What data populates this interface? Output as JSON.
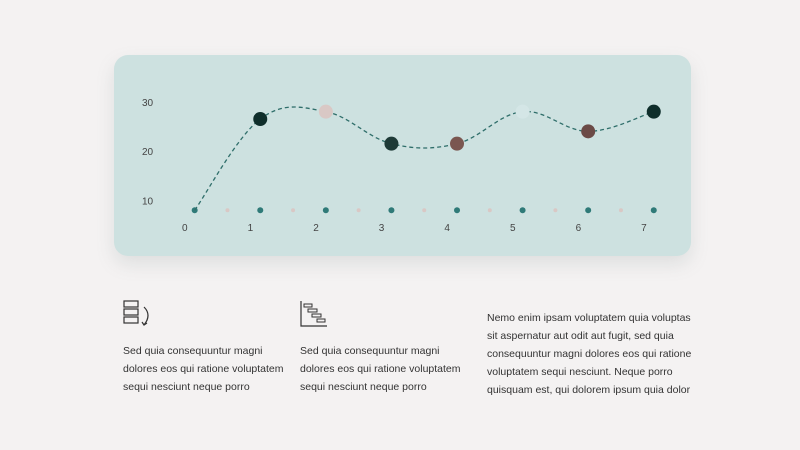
{
  "chart_data": {
    "type": "line",
    "x": [
      0.15,
      1.15,
      2.15,
      3.15,
      4.15,
      5.15,
      6.15,
      7.15
    ],
    "values": [
      8,
      26.5,
      28,
      21.5,
      21.5,
      28,
      24,
      28
    ],
    "yticks": [
      10,
      20,
      30
    ],
    "xticks": [
      0,
      1,
      2,
      3,
      4,
      5,
      6,
      7
    ],
    "xlim": [
      -0.15,
      7.55
    ],
    "ylim": [
      5,
      33
    ],
    "baseline_y": 8,
    "marker_colors": [
      "#2f7a78",
      "#0f2e2b",
      "#d9c8c5",
      "#1e3a37",
      "#7a5650",
      "#d4e6e6",
      "#6b4a46",
      "#0f2e2b"
    ],
    "baseline_dot_colors": [
      "#2f7a78",
      "#2f7a78",
      "#2f7a78",
      "#2f7a78",
      "#2f7a78",
      "#2f7a78",
      "#2f7a78",
      "#2f7a78"
    ],
    "minor_dot_color": "#d9c8c5",
    "line_color": "#2f6e6a",
    "grid": false
  },
  "blocks": [
    {
      "text_lines": [
        "Sed quia consequuntur magni",
        "dolores eos qui ratione voluptatem",
        "sequi nesciunt neque porro"
      ],
      "icon": "stacked-bars-icon"
    },
    {
      "text_lines": [
        "Sed quia consequuntur magni",
        "dolores eos qui ratione voluptatem",
        "sequi nesciunt neque porro"
      ],
      "icon": "gantt-chart-icon"
    },
    {
      "text_lines": [
        "Nemo enim ipsam voluptatem quia voluptas",
        "sit aspernatur aut odit aut fugit, sed quia",
        "consequuntur magni dolores eos qui ratione",
        "voluptatem sequi nesciunt. Neque porro",
        "quisquam est, qui dolorem ipsum quia dolor"
      ]
    }
  ]
}
